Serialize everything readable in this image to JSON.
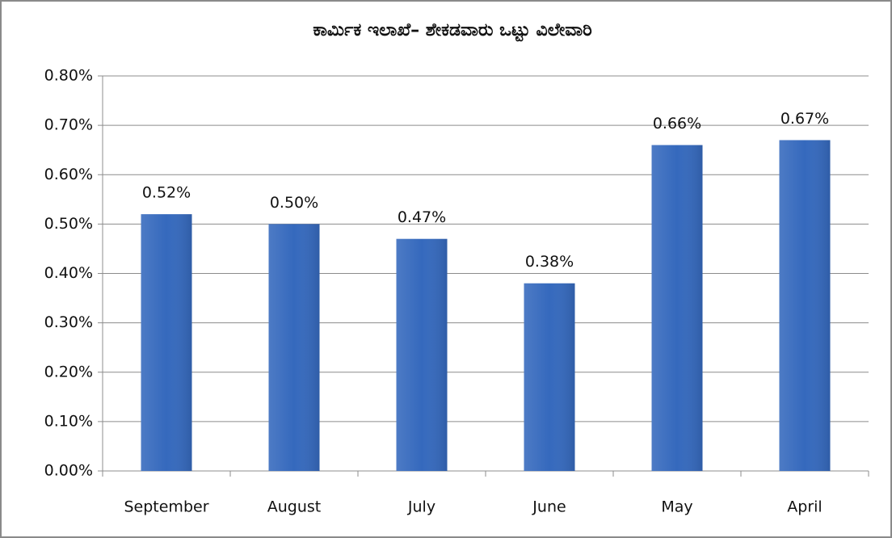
{
  "chart_data": {
    "type": "bar",
    "title": "ಕಾರ್ಮಿಕ  ಇಲಾಖೆ– ಶೇಕಡವಾರು ಒಟ್ಟು ವಿಲೇವಾರಿ",
    "categories": [
      "September",
      "August",
      "July",
      "June",
      "May",
      "April"
    ],
    "values": [
      0.52,
      0.5,
      0.47,
      0.38,
      0.66,
      0.67
    ],
    "value_labels": [
      "0.52%",
      "0.50%",
      "0.47%",
      "0.38%",
      "0.66%",
      "0.67%"
    ],
    "color": "#3569bd",
    "ylim": [
      0,
      0.8
    ],
    "yticks": [
      {
        "value": 0,
        "label": "0.00%"
      },
      {
        "value": 0.1,
        "label": "0.10%"
      },
      {
        "value": 0.2,
        "label": "0.20%"
      },
      {
        "value": 0.3,
        "label": "0.30%"
      },
      {
        "value": 0.4,
        "label": "0.40%"
      },
      {
        "value": 0.5,
        "label": "0.50%"
      },
      {
        "value": 0.6,
        "label": "0.60%"
      },
      {
        "value": 0.7,
        "label": "0.70%"
      },
      {
        "value": 0.8,
        "label": "0.80%"
      }
    ],
    "grid": true
  }
}
